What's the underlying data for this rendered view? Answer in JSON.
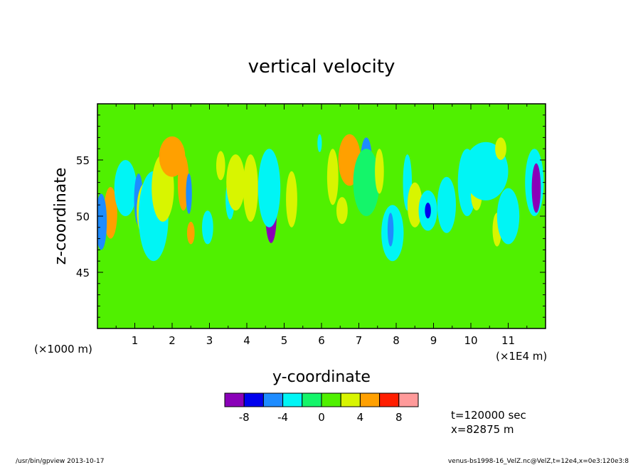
{
  "chart_data": {
    "type": "heatmap",
    "title": "vertical velocity",
    "xlabel": "y-coordinate",
    "ylabel": "z-coordinate",
    "x_unit_label": "(×1E4 m)",
    "y_unit_label": "(×1000 m)",
    "xlim": [
      0,
      12
    ],
    "ylim": [
      40,
      60
    ],
    "x_ticks": [
      "1",
      "2",
      "3",
      "4",
      "5",
      "6",
      "7",
      "8",
      "9",
      "10",
      "11"
    ],
    "y_ticks": [
      "45",
      "50",
      "55"
    ],
    "colorbar": {
      "colors": [
        "#8a00b8",
        "#0000ee",
        "#1e8cff",
        "#00f5f5",
        "#14f56a",
        "#50f000",
        "#d8f500",
        "#ffa000",
        "#ff1e00",
        "#ff9a9a"
      ],
      "tick_labels": [
        "-8",
        "-4",
        "0",
        "4",
        "8"
      ],
      "boundaries": [
        -10,
        -8,
        -6,
        -4,
        -2,
        0,
        2,
        4,
        6,
        8,
        10
      ]
    },
    "background_level": 0,
    "blobs": [
      {
        "y": 0.35,
        "z": 50.3,
        "ry": 0.18,
        "rz": 2.3,
        "v": 5.5
      },
      {
        "y": 0.1,
        "z": 49.5,
        "ry": 0.15,
        "rz": 2.5,
        "v": -4.5
      },
      {
        "y": 0.75,
        "z": 52.5,
        "ry": 0.3,
        "rz": 2.5,
        "v": -2.5
      },
      {
        "y": 1.1,
        "z": 51.5,
        "ry": 0.12,
        "rz": 2.3,
        "v": -5
      },
      {
        "y": 1.3,
        "z": 50.5,
        "ry": 0.25,
        "rz": 2.5,
        "v": 3
      },
      {
        "y": 1.5,
        "z": 50.0,
        "ry": 0.4,
        "rz": 4,
        "v": -2.5
      },
      {
        "y": 1.75,
        "z": 52.5,
        "ry": 0.3,
        "rz": 3,
        "v": 3
      },
      {
        "y": 2.0,
        "z": 55.3,
        "ry": 0.35,
        "rz": 1.8,
        "v": 5.5
      },
      {
        "y": 2.3,
        "z": 53.0,
        "ry": 0.15,
        "rz": 2.5,
        "v": 4.5
      },
      {
        "y": 2.45,
        "z": 52.0,
        "ry": 0.08,
        "rz": 1.8,
        "v": -5.5
      },
      {
        "y": 2.5,
        "z": 48.5,
        "ry": 0.1,
        "rz": 1.0,
        "v": 4
      },
      {
        "y": 2.95,
        "z": 49.0,
        "ry": 0.15,
        "rz": 1.5,
        "v": -2.5
      },
      {
        "y": 3.3,
        "z": 54.5,
        "ry": 0.12,
        "rz": 1.3,
        "v": 3
      },
      {
        "y": 3.55,
        "z": 51.5,
        "ry": 0.12,
        "rz": 1.8,
        "v": -2.5
      },
      {
        "y": 3.7,
        "z": 53.0,
        "ry": 0.25,
        "rz": 2.5,
        "v": 3
      },
      {
        "y": 4.1,
        "z": 52.5,
        "ry": 0.2,
        "rz": 3,
        "v": 2.5
      },
      {
        "y": 4.65,
        "z": 50.2,
        "ry": 0.15,
        "rz": 2.6,
        "v": -8.5
      },
      {
        "y": 4.6,
        "z": 52.5,
        "ry": 0.3,
        "rz": 3.5,
        "v": -3
      },
      {
        "y": 5.2,
        "z": 51.5,
        "ry": 0.15,
        "rz": 2.5,
        "v": 3
      },
      {
        "y": 5.95,
        "z": 56.5,
        "ry": 0.06,
        "rz": 0.8,
        "v": -4
      },
      {
        "y": 6.3,
        "z": 53.5,
        "ry": 0.15,
        "rz": 2.5,
        "v": 3
      },
      {
        "y": 6.55,
        "z": 50.5,
        "ry": 0.15,
        "rz": 1.2,
        "v": 3
      },
      {
        "y": 6.75,
        "z": 55.0,
        "ry": 0.3,
        "rz": 2.3,
        "v": 5.5
      },
      {
        "y": 7.2,
        "z": 55.0,
        "ry": 0.15,
        "rz": 2,
        "v": -4.5
      },
      {
        "y": 7.2,
        "z": 53.0,
        "ry": 0.35,
        "rz": 3,
        "v": -2
      },
      {
        "y": 7.55,
        "z": 54.0,
        "ry": 0.12,
        "rz": 2,
        "v": 3
      },
      {
        "y": 7.9,
        "z": 48.5,
        "ry": 0.3,
        "rz": 2.5,
        "v": -2.5
      },
      {
        "y": 7.85,
        "z": 48.8,
        "ry": 0.08,
        "rz": 1.5,
        "v": -4.5
      },
      {
        "y": 8.3,
        "z": 53.0,
        "ry": 0.12,
        "rz": 2.5,
        "v": -3.5
      },
      {
        "y": 8.5,
        "z": 51.0,
        "ry": 0.2,
        "rz": 2,
        "v": 3
      },
      {
        "y": 8.85,
        "z": 50.5,
        "ry": 0.25,
        "rz": 1.8,
        "v": -3.5
      },
      {
        "y": 8.85,
        "z": 50.5,
        "ry": 0.08,
        "rz": 0.7,
        "v": -6.5
      },
      {
        "y": 9.35,
        "z": 51.0,
        "ry": 0.25,
        "rz": 2.5,
        "v": -2.5
      },
      {
        "y": 9.9,
        "z": 53.0,
        "ry": 0.25,
        "rz": 3,
        "v": -2.5
      },
      {
        "y": 10.15,
        "z": 52.0,
        "ry": 0.15,
        "rz": 1.5,
        "v": 3
      },
      {
        "y": 10.3,
        "z": 55.0,
        "ry": 0.3,
        "rz": 1.5,
        "v": -5
      },
      {
        "y": 10.4,
        "z": 54.0,
        "ry": 0.6,
        "rz": 2.6,
        "v": -2.5
      },
      {
        "y": 10.7,
        "z": 48.8,
        "ry": 0.12,
        "rz": 1.5,
        "v": 3
      },
      {
        "y": 10.8,
        "z": 56.0,
        "ry": 0.15,
        "rz": 1.0,
        "v": 3
      },
      {
        "y": 11.0,
        "z": 50.0,
        "ry": 0.3,
        "rz": 2.5,
        "v": -2.5
      },
      {
        "y": 11.7,
        "z": 53.0,
        "ry": 0.25,
        "rz": 3.0,
        "v": -3.5
      },
      {
        "y": 11.75,
        "z": 52.5,
        "ry": 0.12,
        "rz": 2.2,
        "v": -8.5
      }
    ]
  },
  "info": {
    "time": "t=120000 sec",
    "position": "x=82875 m"
  },
  "footer": {
    "left": "/usr/bin/gpview  2013-10-17",
    "right": "venus-bs1998-16_VelZ.nc@VelZ,t=12e4,x=0e3:120e3:8"
  }
}
